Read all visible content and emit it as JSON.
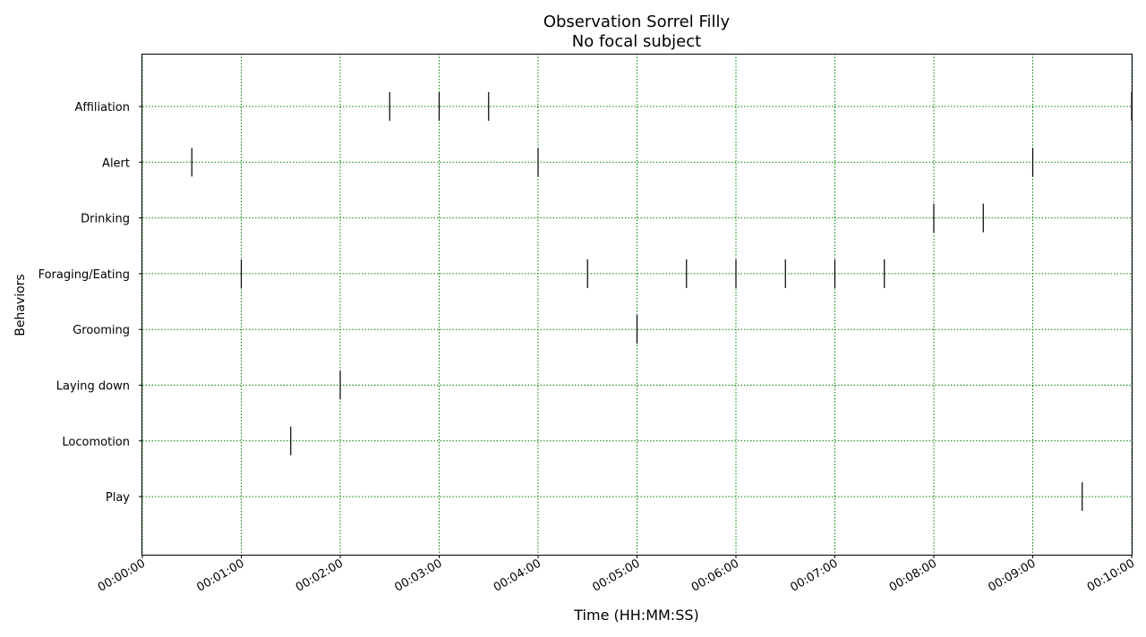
{
  "chart_data": {
    "type": "scatter",
    "title": "Observation Sorrel Filly",
    "subtitle": "No focal subject",
    "xlabel": "Time (HH:MM:SS)",
    "ylabel": "Behaviors",
    "xlim": [
      "00:00:00",
      "00:10:00"
    ],
    "x_ticks": [
      "00:00:00",
      "00:01:00",
      "00:02:00",
      "00:03:00",
      "00:04:00",
      "00:05:00",
      "00:06:00",
      "00:07:00",
      "00:08:00",
      "00:09:00",
      "00:10:00"
    ],
    "categories": [
      "Affiliation",
      "Alert",
      "Drinking",
      "Foraging/Eating",
      "Grooming",
      "Laying down",
      "Locomotion",
      "Play"
    ],
    "grid": true,
    "grid_color": "#008000",
    "marker": "vertical tick",
    "marker_color": "#000000",
    "events": [
      {
        "behavior": "Affiliation",
        "times": [
          "00:02:30",
          "00:03:00",
          "00:03:30",
          "00:10:00"
        ]
      },
      {
        "behavior": "Alert",
        "times": [
          "00:00:30",
          "00:04:00",
          "00:09:00"
        ]
      },
      {
        "behavior": "Drinking",
        "times": [
          "00:08:00",
          "00:08:30"
        ]
      },
      {
        "behavior": "Foraging/Eating",
        "times": [
          "00:01:00",
          "00:04:30",
          "00:05:30",
          "00:06:00",
          "00:06:30",
          "00:07:00",
          "00:07:30"
        ]
      },
      {
        "behavior": "Grooming",
        "times": [
          "00:05:00"
        ]
      },
      {
        "behavior": "Laying down",
        "times": [
          "00:02:00"
        ]
      },
      {
        "behavior": "Locomotion",
        "times": [
          "00:01:30"
        ]
      },
      {
        "behavior": "Play",
        "times": [
          "00:09:30"
        ]
      }
    ]
  }
}
